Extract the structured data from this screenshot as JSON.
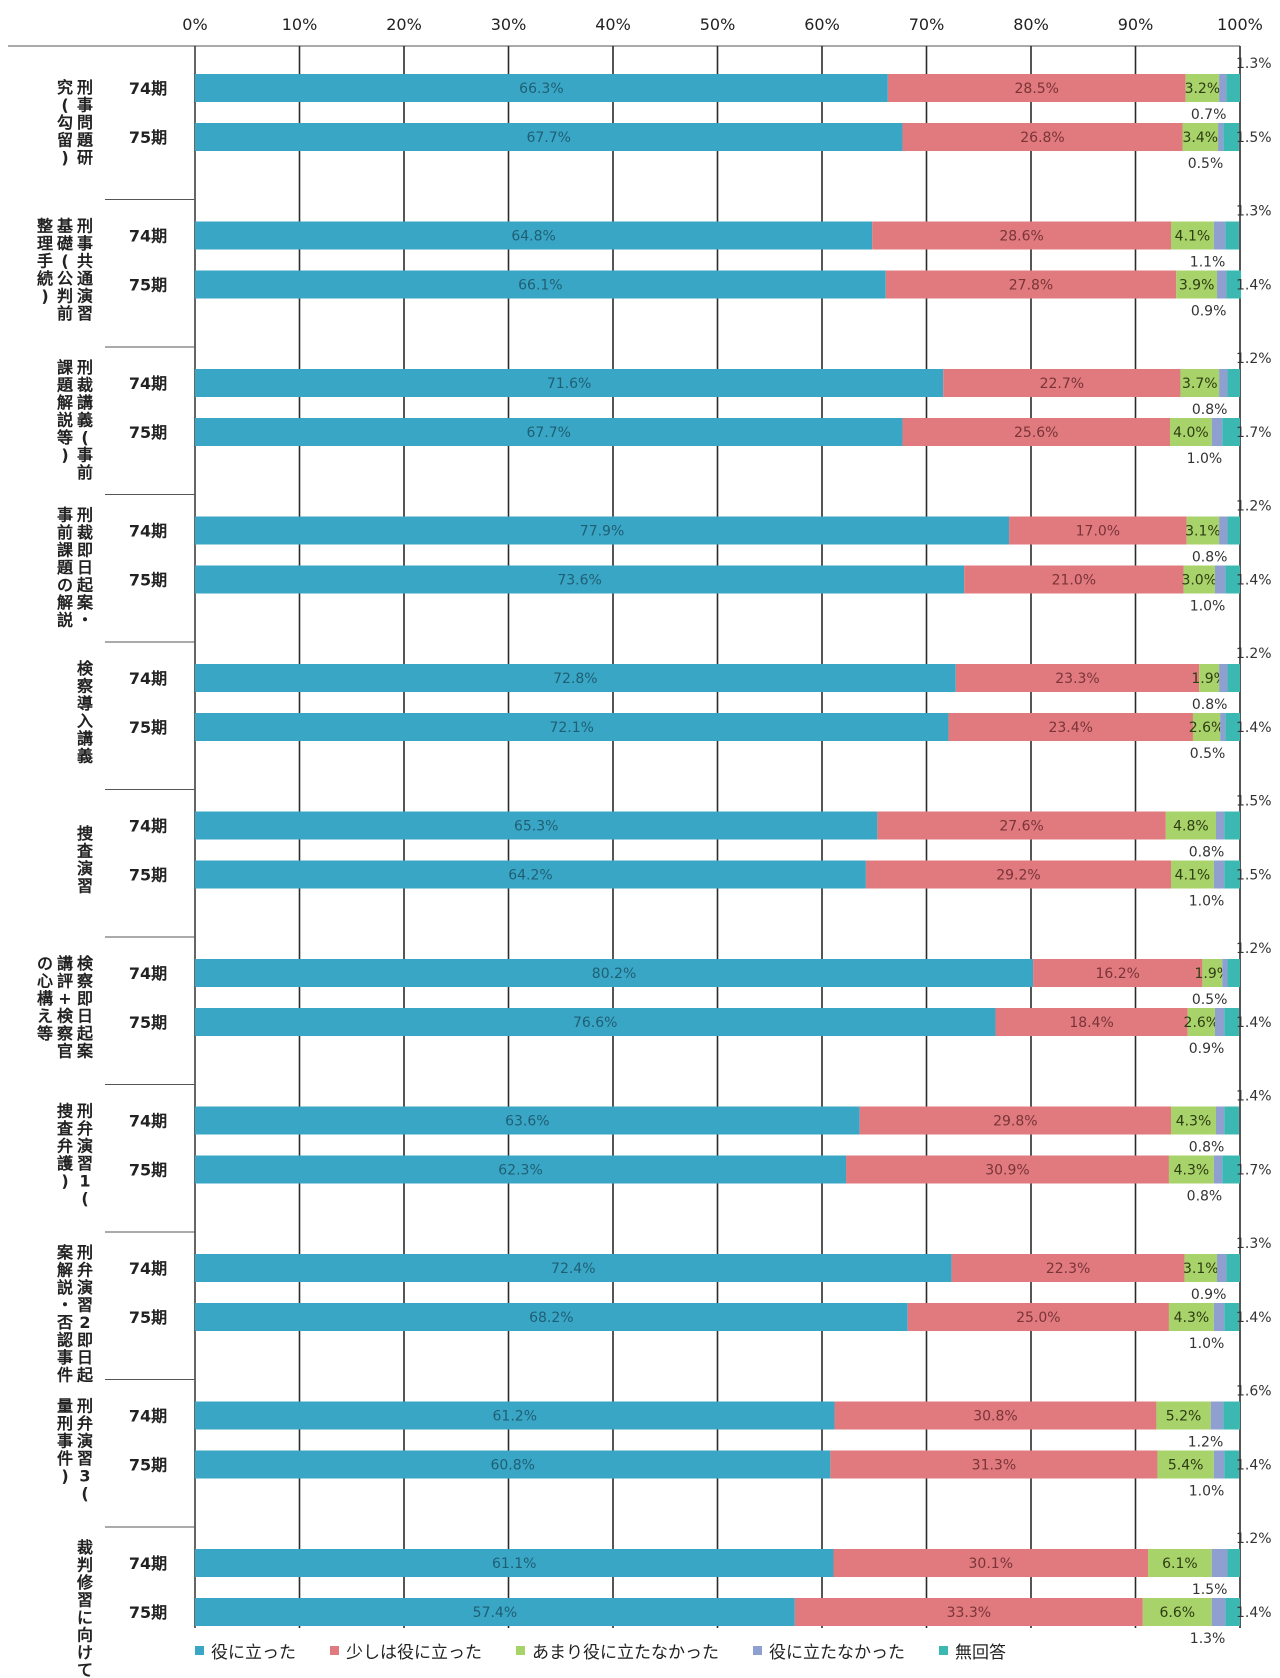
{
  "chart_data": {
    "type": "bar",
    "orientation": "horizontal-stacked-100",
    "xlim": [
      0,
      100
    ],
    "x_tick_labels": [
      "0%",
      "10%",
      "20%",
      "30%",
      "40%",
      "50%",
      "60%",
      "70%",
      "80%",
      "90%",
      "100%"
    ],
    "series_names": [
      "役に立った",
      "少しは役に立った",
      "あまり役に立たなかった",
      "役に立たなかった",
      "無回答"
    ],
    "colors": [
      "#3aa6c6",
      "#e07a7e",
      "#a8d26a",
      "#8fa0d0",
      "#3bb8b2"
    ],
    "groups": [
      {
        "label": "刑事問題研究(勾留)",
        "rows": [
          {
            "term": "74期",
            "values": [
              66.3,
              28.5,
              3.2,
              0.7,
              1.3
            ],
            "labels": [
              "66.3%",
              "28.5%",
              "3.2%",
              "0.7%",
              "1.3%"
            ]
          },
          {
            "term": "75期",
            "values": [
              67.7,
              26.8,
              3.4,
              0.5,
              1.5
            ],
            "labels": [
              "67.7%",
              "26.8%",
              "3.4%",
              "0.5%",
              "1.5%"
            ]
          }
        ]
      },
      {
        "label": "刑事共通演習基礎(公判前整理手続)",
        "rows": [
          {
            "term": "74期",
            "values": [
              64.8,
              28.6,
              4.1,
              1.1,
              1.3
            ],
            "labels": [
              "64.8%",
              "28.6%",
              "4.1%",
              "1.1%",
              "1.3%"
            ]
          },
          {
            "term": "75期",
            "values": [
              66.1,
              27.8,
              3.9,
              0.9,
              1.4
            ],
            "labels": [
              "66.1%",
              "27.8%",
              "3.9%",
              "0.9%",
              "1.4%"
            ]
          }
        ]
      },
      {
        "label": "刑裁講義(事前課題解説等)",
        "rows": [
          {
            "term": "74期",
            "values": [
              71.6,
              22.7,
              3.7,
              0.8,
              1.2
            ],
            "labels": [
              "71.6%",
              "22.7%",
              "3.7%",
              "0.8%",
              "1.2%"
            ]
          },
          {
            "term": "75期",
            "values": [
              67.7,
              25.6,
              4.0,
              1.0,
              1.7
            ],
            "labels": [
              "67.7%",
              "25.6%",
              "4.0%",
              "1.0%",
              "1.7%"
            ]
          }
        ]
      },
      {
        "label": "刑裁即日起案・事前課題の解説",
        "rows": [
          {
            "term": "74期",
            "values": [
              77.9,
              17.0,
              3.1,
              0.8,
              1.2
            ],
            "labels": [
              "77.9%",
              "17.0%",
              "3.1%",
              "0.8%",
              "1.2%"
            ]
          },
          {
            "term": "75期",
            "values": [
              73.6,
              21.0,
              3.0,
              1.0,
              1.4
            ],
            "labels": [
              "73.6%",
              "21.0%",
              "3.0%",
              "1.0%",
              "1.4%"
            ]
          }
        ]
      },
      {
        "label": "検察導入講義",
        "rows": [
          {
            "term": "74期",
            "values": [
              72.8,
              23.3,
              1.9,
              0.8,
              1.2
            ],
            "labels": [
              "72.8%",
              "23.3%",
              "1.9%",
              "0.8%",
              "1.2%"
            ]
          },
          {
            "term": "75期",
            "values": [
              72.1,
              23.4,
              2.6,
              0.5,
              1.4
            ],
            "labels": [
              "72.1%",
              "23.4%",
              "2.6%",
              "0.5%",
              "1.4%"
            ]
          }
        ]
      },
      {
        "label": "捜査演習",
        "rows": [
          {
            "term": "74期",
            "values": [
              65.3,
              27.6,
              4.8,
              0.8,
              1.5
            ],
            "labels": [
              "65.3%",
              "27.6%",
              "4.8%",
              "0.8%",
              "1.5%"
            ]
          },
          {
            "term": "75期",
            "values": [
              64.2,
              29.2,
              4.1,
              1.0,
              1.5
            ],
            "labels": [
              "64.2%",
              "29.2%",
              "4.1%",
              "1.0%",
              "1.5%"
            ]
          }
        ]
      },
      {
        "label": "検察即日起案講評+検察官の心構え等",
        "rows": [
          {
            "term": "74期",
            "values": [
              80.2,
              16.2,
              1.9,
              0.5,
              1.2
            ],
            "labels": [
              "80.2%",
              "16.2%",
              "1.9%",
              "0.5%",
              "1.2%"
            ]
          },
          {
            "term": "75期",
            "values": [
              76.6,
              18.4,
              2.6,
              0.9,
              1.4
            ],
            "labels": [
              "76.6%",
              "18.4%",
              "2.6%",
              "0.9%",
              "1.4%"
            ]
          }
        ]
      },
      {
        "label": "刑弁演習1(捜査弁護)",
        "rows": [
          {
            "term": "74期",
            "values": [
              63.6,
              29.8,
              4.3,
              0.8,
              1.4
            ],
            "labels": [
              "63.6%",
              "29.8%",
              "4.3%",
              "0.8%",
              "1.4%"
            ]
          },
          {
            "term": "75期",
            "values": [
              62.3,
              30.9,
              4.3,
              0.8,
              1.7
            ],
            "labels": [
              "62.3%",
              "30.9%",
              "4.3%",
              "0.8%",
              "1.7%"
            ]
          }
        ]
      },
      {
        "label": "刑弁演習2即日起案解説・否認事件",
        "rows": [
          {
            "term": "74期",
            "values": [
              72.4,
              22.3,
              3.1,
              0.9,
              1.3
            ],
            "labels": [
              "72.4%",
              "22.3%",
              "3.1%",
              "0.9%",
              "1.3%"
            ]
          },
          {
            "term": "75期",
            "values": [
              68.2,
              25.0,
              4.3,
              1.0,
              1.4
            ],
            "labels": [
              "68.2%",
              "25.0%",
              "4.3%",
              "1.0%",
              "1.4%"
            ]
          }
        ]
      },
      {
        "label": "刑弁演習3(量刑事件)",
        "rows": [
          {
            "term": "74期",
            "values": [
              61.2,
              30.8,
              5.2,
              1.2,
              1.6
            ],
            "labels": [
              "61.2%",
              "30.8%",
              "5.2%",
              "1.2%",
              "1.6%"
            ]
          },
          {
            "term": "75期",
            "values": [
              60.8,
              31.3,
              5.4,
              1.0,
              1.4
            ],
            "labels": [
              "60.8%",
              "31.3%",
              "5.4%",
              "1.0%",
              "1.4%"
            ]
          }
        ]
      },
      {
        "label": "裁判修習に向けて",
        "rows": [
          {
            "term": "74期",
            "values": [
              61.1,
              30.1,
              6.1,
              1.5,
              1.2
            ],
            "labels": [
              "61.1%",
              "30.1%",
              "6.1%",
              "1.5%",
              "1.2%"
            ]
          },
          {
            "term": "75期",
            "values": [
              57.4,
              33.3,
              6.6,
              1.3,
              1.4
            ],
            "labels": [
              "57.4%",
              "33.3%",
              "6.6%",
              "1.3%",
              "1.4%"
            ]
          }
        ]
      }
    ]
  }
}
